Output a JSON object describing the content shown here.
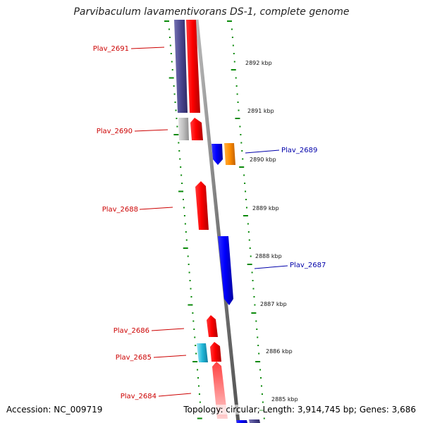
{
  "title": "Parvibaculum lavamentivorans DS-1, complete genome",
  "accession_text": "Accession: NC_009719",
  "topology_text": "Topology: circular; Length: 3,914,745 bp; Genes: 3,686",
  "kbp_labels": [
    "2892 kbp",
    "2891 kbp",
    "2890 kbp",
    "2889 kbp",
    "2888 kbp",
    "2887 kbp",
    "2886 kbp",
    "2885 kbp"
  ],
  "genes": [
    {
      "name": "Plav_2691",
      "strand": "left",
      "color": "#cc0000"
    },
    {
      "name": "Plav_2690",
      "strand": "left",
      "color": "#cc0000"
    },
    {
      "name": "Plav_2689",
      "strand": "right",
      "color": "#0000aa"
    },
    {
      "name": "Plav_2688",
      "strand": "left",
      "color": "#cc0000"
    },
    {
      "name": "Plav_2687",
      "strand": "right",
      "color": "#0000aa"
    },
    {
      "name": "Plav_2686",
      "strand": "left",
      "color": "#cc0000"
    },
    {
      "name": "Plav_2685",
      "strand": "left",
      "color": "#cc0000"
    },
    {
      "name": "Plav_2684",
      "strand": "left",
      "color": "#cc0000"
    }
  ],
  "colors": {
    "forward_gene": "#ff0000",
    "reverse_gene": "#0000ff",
    "gene_purple": "#55508f",
    "gene_gray": "#bdbdbd",
    "gene_orange": "#ff8c00",
    "gene_cyan": "#22b8d8",
    "backbone": "#8a8a8a",
    "tick": "#0a8a0a"
  }
}
